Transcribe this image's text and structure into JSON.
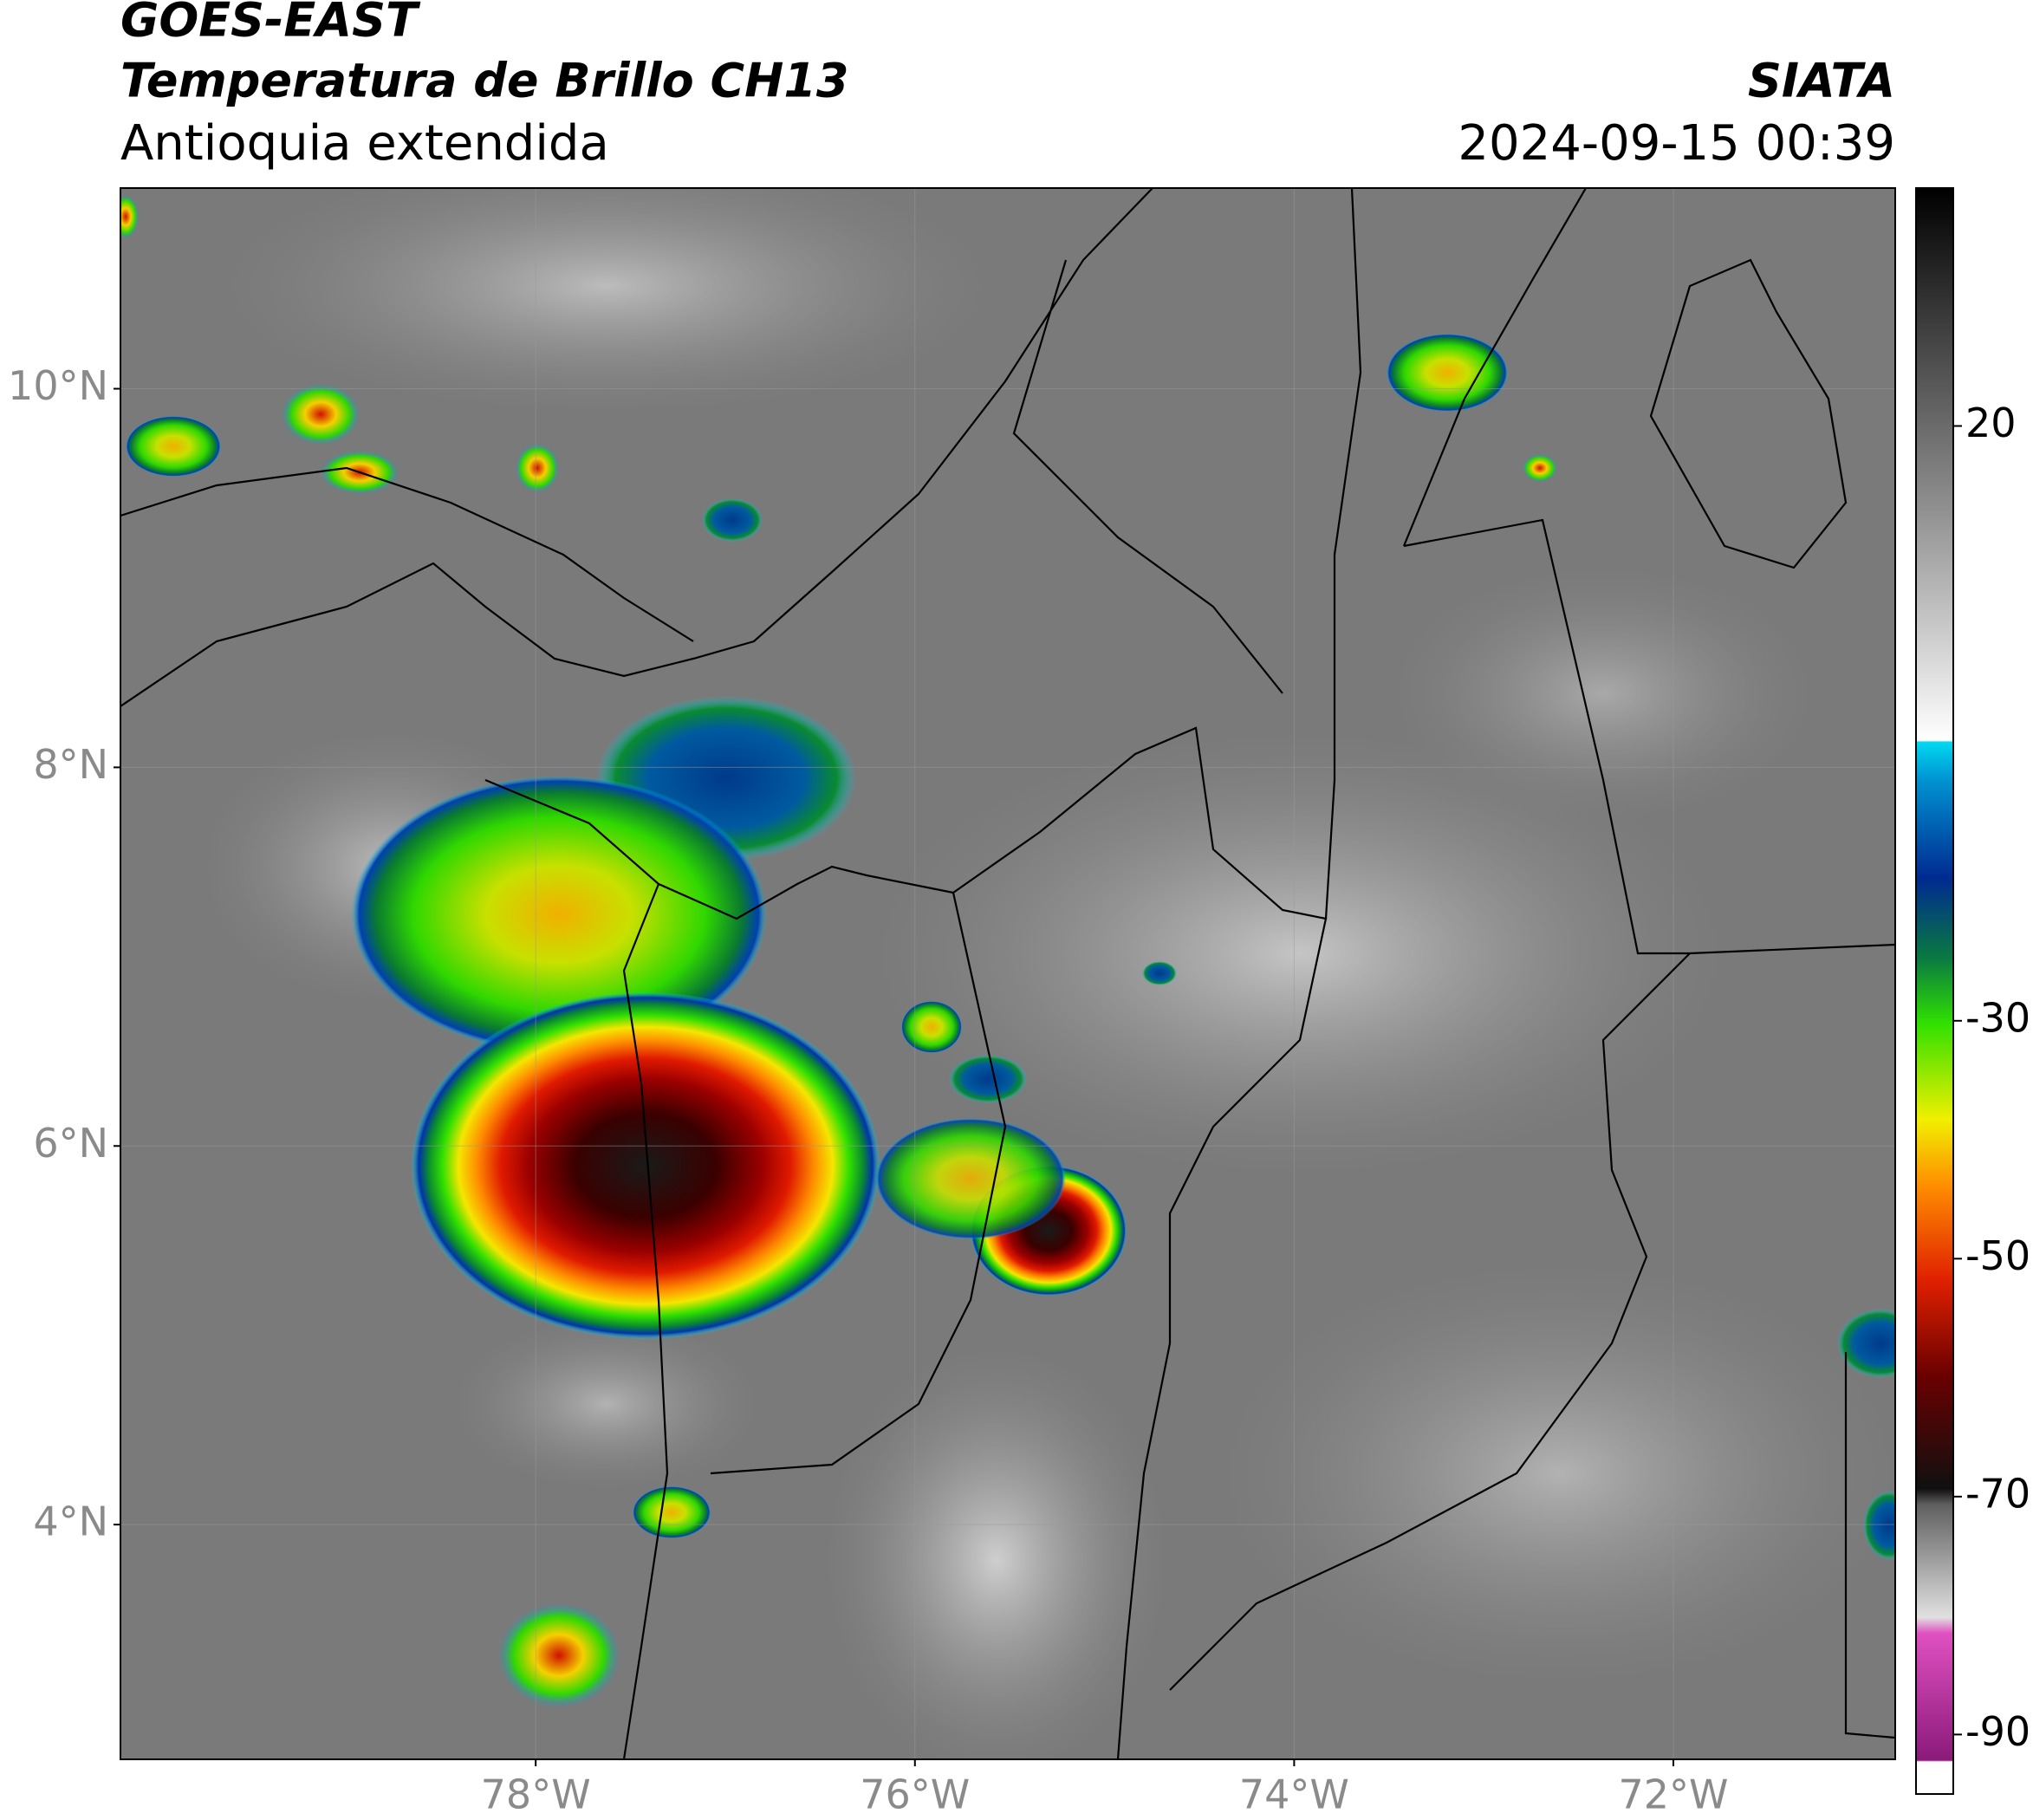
{
  "header": {
    "title": "GOES-EAST",
    "subtitle": "Temperatura de Brillo CH13",
    "region": "Antioquia extendida",
    "source": "SIATA",
    "datetime": "2024-09-15 00:39"
  },
  "map": {
    "lonlim": [
      -80.19,
      -70.83
    ],
    "latlim": [
      2.76,
      11.06
    ],
    "lon_ticks": [
      {
        "value": -78,
        "label": "78°W"
      },
      {
        "value": -76,
        "label": "76°W"
      },
      {
        "value": -74,
        "label": "74°W"
      },
      {
        "value": -72,
        "label": "72°W"
      }
    ],
    "lat_ticks": [
      {
        "value": 10,
        "label": "10°N"
      },
      {
        "value": 8,
        "label": "8°N"
      },
      {
        "value": 6,
        "label": "6°N"
      },
      {
        "value": 4,
        "label": "4°N"
      }
    ]
  },
  "colorbar": {
    "clim": [
      -95,
      40
    ],
    "ticks": [
      20,
      -30,
      -50,
      -70,
      -90
    ]
  }
}
